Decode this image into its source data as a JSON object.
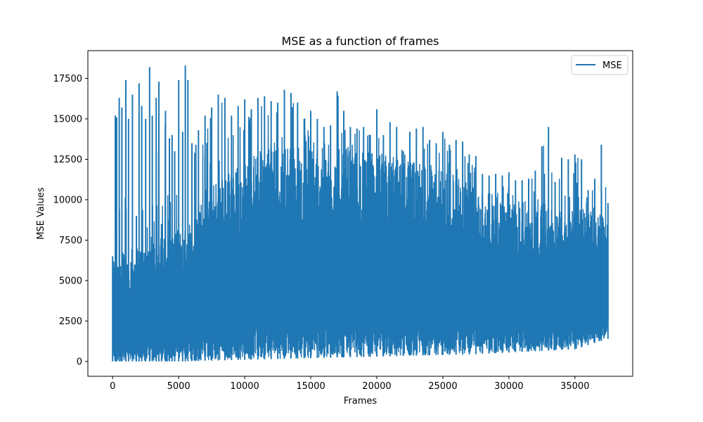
{
  "chart_data": {
    "type": "line",
    "title": "MSE as a function of frames",
    "xlabel": "Frames",
    "ylabel": "MSE Values",
    "xlim": [
      -1875,
      39375
    ],
    "ylim": [
      -920,
      19220
    ],
    "xticks": [
      0,
      5000,
      10000,
      15000,
      20000,
      25000,
      30000,
      35000
    ],
    "yticks": [
      0,
      2500,
      5000,
      7500,
      10000,
      12500,
      15000,
      17500
    ],
    "grid": false,
    "legend_position": "top-right",
    "series": [
      {
        "name": "MSE",
        "color": "#1f77b4",
        "n_points": 37500,
        "x_range": [
          0,
          37500
        ],
        "upper_envelope": {
          "x": [
            0,
            200,
            300,
            500,
            700,
            1000,
            1200,
            1500,
            1800,
            2000,
            2200,
            2500,
            2800,
            3000,
            3300,
            3500,
            3700,
            4000,
            4300,
            4500,
            4700,
            5000,
            5300,
            5500,
            5700,
            6000,
            6300,
            6500,
            7000,
            7500,
            8000,
            8500,
            9000,
            9500,
            10000,
            10500,
            11000,
            11500,
            12000,
            12500,
            13000,
            13500,
            14000,
            14500,
            15000,
            15500,
            16000,
            16500,
            17000,
            17500,
            18000,
            18500,
            19000,
            19500,
            20000,
            20500,
            21000,
            21500,
            22000,
            22500,
            23000,
            23500,
            24000,
            24500,
            25000,
            25500,
            26000,
            26500,
            27000,
            27500,
            28000,
            28500,
            29000,
            29500,
            30000,
            30500,
            31000,
            31500,
            32000,
            32500,
            33000,
            33500,
            34000,
            34500,
            35000,
            35500,
            36000,
            36500,
            37000,
            37500
          ],
          "y": [
            6500,
            15200,
            15100,
            16300,
            15700,
            17400,
            15000,
            16500,
            9000,
            17200,
            15800,
            15000,
            18200,
            15200,
            16300,
            17300,
            8500,
            15500,
            13800,
            14000,
            13000,
            17400,
            14200,
            18300,
            17400,
            13500,
            13400,
            14300,
            15200,
            15700,
            16500,
            16300,
            15200,
            15800,
            16200,
            15600,
            16300,
            16400,
            16100,
            16000,
            16800,
            16600,
            16000,
            15000,
            15500,
            15000,
            14500,
            14600,
            16700,
            15500,
            14500,
            14400,
            14500,
            14000,
            15600,
            14000,
            14800,
            14500,
            13000,
            14200,
            14400,
            14500,
            13700,
            13500,
            14200,
            13400,
            13700,
            13600,
            12800,
            12700,
            11600,
            11500,
            11600,
            11500,
            11700,
            11200,
            11200,
            11300,
            11800,
            13300,
            14500,
            11100,
            12600,
            12500,
            12800,
            12500,
            10600,
            11300,
            13400,
            9800
          ]
        },
        "lower_envelope": {
          "x": [
            0,
            2500,
            5000,
            7500,
            10000,
            12500,
            15000,
            17500,
            20000,
            22500,
            25000,
            27500,
            30000,
            32500,
            35000,
            37500
          ],
          "y": [
            0,
            0,
            0,
            50,
            100,
            150,
            200,
            250,
            300,
            350,
            400,
            450,
            550,
            650,
            750,
            1400
          ]
        },
        "dense_band": {
          "x": [
            0,
            6000,
            7000,
            12000,
            20000,
            25000,
            30000,
            35000,
            37500
          ],
          "y": [
            6500,
            8500,
            10800,
            13500,
            13000,
            12000,
            9800,
            9500,
            9000
          ]
        }
      }
    ]
  }
}
